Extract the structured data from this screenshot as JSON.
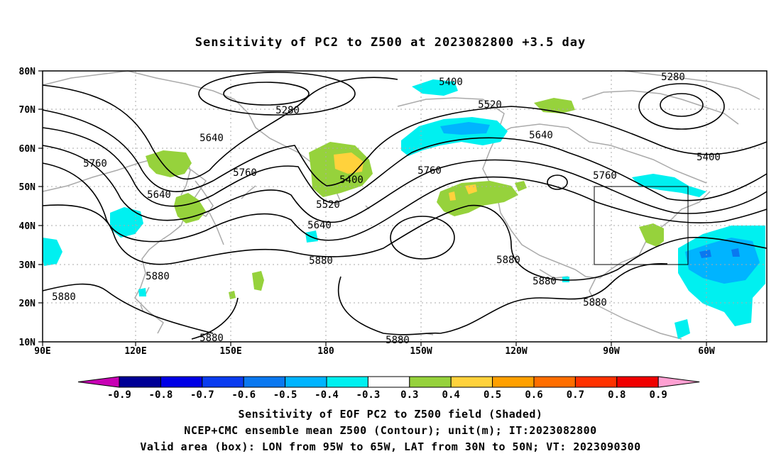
{
  "title": "Sensitivity of PC2 to Z500 at 2023082800 +3.5 day",
  "map": {
    "lon_labels": [
      "90E",
      "120E",
      "150E",
      "180",
      "150W",
      "120W",
      "90W",
      "60W"
    ],
    "lat_labels": [
      "80N",
      "70N",
      "60N",
      "50N",
      "40N",
      "30N",
      "20N",
      "10N"
    ],
    "contour_labels": [
      "5400",
      "5280",
      "5520",
      "5640",
      "5760",
      "5400",
      "5520",
      "5640",
      "5760",
      "5880",
      "5760",
      "5640",
      "5280",
      "5400",
      "5880",
      "5880",
      "5880",
      "5880",
      "5880",
      "5880",
      "5760",
      "5640",
      "5880"
    ],
    "valid_box": {
      "lon": [
        "95W",
        "65W"
      ],
      "lat": [
        "30N",
        "50N"
      ]
    }
  },
  "colorbar": {
    "labels": [
      "-0.9",
      "-0.8",
      "-0.7",
      "-0.6",
      "-0.5",
      "-0.4",
      "-0.3",
      "0.3",
      "0.4",
      "0.5",
      "0.6",
      "0.7",
      "0.8",
      "0.9"
    ],
    "colors": [
      "#000096",
      "#0000e6",
      "#0a3cf0",
      "#0a78f0",
      "#00b4ff",
      "#00f0f0",
      "#ffffff",
      "#96d23c",
      "#ffd23c",
      "#ffa000",
      "#ff6e00",
      "#ff3200",
      "#f00000"
    ],
    "low_arrow_color": "#c800b4",
    "high_arrow_color": "#ffa0d2"
  },
  "captions": [
    "Sensitivity of EOF PC2 to Z500 field (Shaded)",
    "NCEP+CMC ensemble mean Z500 (Contour); unit(m); IT:2023082800",
    "Valid area (box): LON from 95W to 65W, LAT from 30N to 50N; VT: 2023090300"
  ]
}
